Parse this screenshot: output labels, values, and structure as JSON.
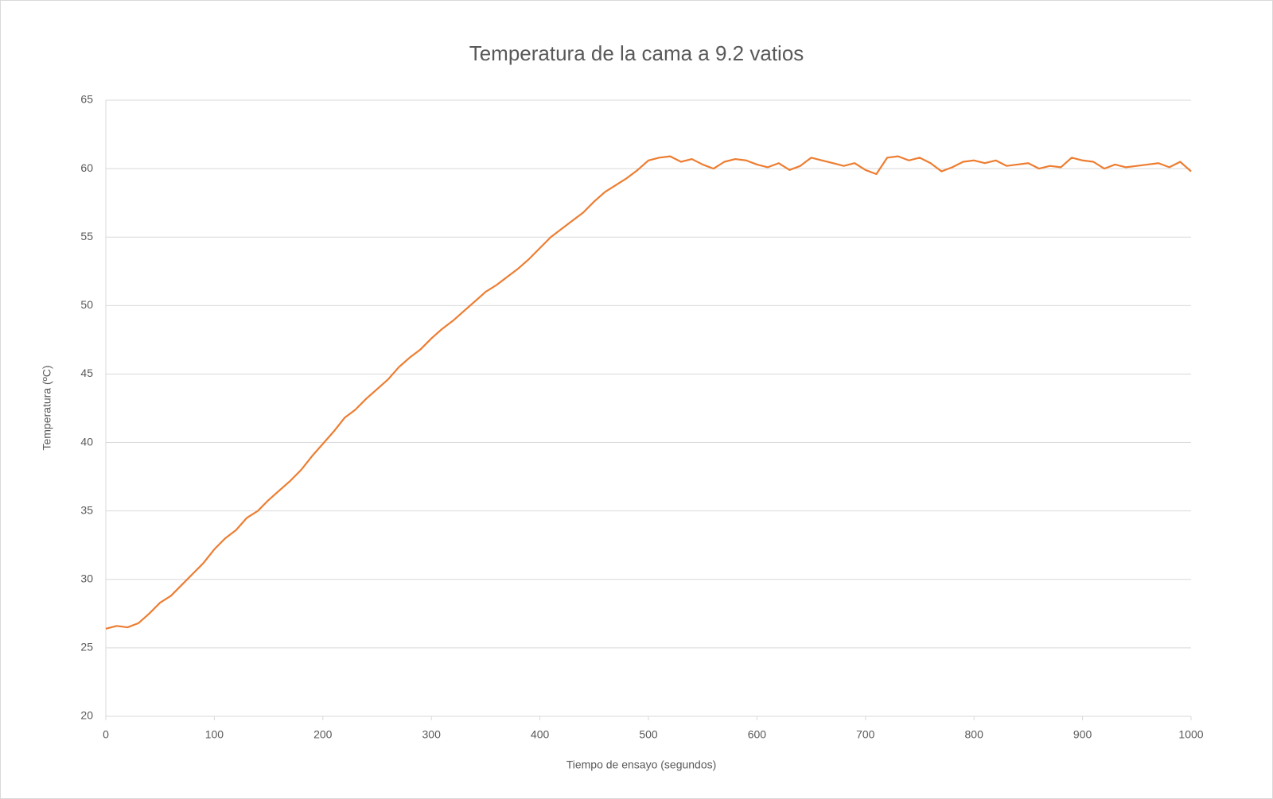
{
  "chart_data": {
    "type": "line",
    "title": "Temperatura de la cama a 9.2 vatios",
    "x_label": "Tiempo de ensayo (segundos)",
    "y_label": "Temperatura (ºC)",
    "x": [
      0,
      10,
      20,
      30,
      40,
      50,
      60,
      70,
      80,
      90,
      100,
      110,
      120,
      130,
      140,
      150,
      160,
      170,
      180,
      190,
      200,
      210,
      220,
      230,
      240,
      250,
      260,
      270,
      280,
      290,
      300,
      310,
      320,
      330,
      340,
      350,
      360,
      370,
      380,
      390,
      400,
      410,
      420,
      430,
      440,
      450,
      460,
      470,
      480,
      490,
      500,
      510,
      520,
      530,
      540,
      550,
      560,
      570,
      580,
      590,
      600,
      610,
      620,
      630,
      640,
      650,
      660,
      670,
      680,
      690,
      700,
      710,
      720,
      730,
      740,
      750,
      760,
      770,
      780,
      790,
      800,
      810,
      820,
      830,
      840,
      850,
      860,
      870,
      880,
      890,
      900,
      910,
      920,
      930,
      940,
      950,
      960,
      970,
      980,
      990,
      1000
    ],
    "series": [
      {
        "name": "Temperatura",
        "color": "#ed7d31",
        "values": [
          26.4,
          26.6,
          26.5,
          26.8,
          27.5,
          28.3,
          28.8,
          29.6,
          30.4,
          31.2,
          32.2,
          33.0,
          33.6,
          34.5,
          35.0,
          35.8,
          36.5,
          37.2,
          38.0,
          39.0,
          39.9,
          40.8,
          41.8,
          42.4,
          43.2,
          43.9,
          44.6,
          45.5,
          46.2,
          46.8,
          47.6,
          48.3,
          48.9,
          49.6,
          50.3,
          51.0,
          51.5,
          52.1,
          52.7,
          53.4,
          54.2,
          55.0,
          55.6,
          56.2,
          56.8,
          57.6,
          58.3,
          58.8,
          59.3,
          59.9,
          60.6,
          60.8,
          60.9,
          60.5,
          60.7,
          60.3,
          60.0,
          60.5,
          60.7,
          60.6,
          60.3,
          60.1,
          60.4,
          59.9,
          60.2,
          60.8,
          60.6,
          60.4,
          60.2,
          60.4,
          59.9,
          59.6,
          60.8,
          60.9,
          60.6,
          60.8,
          60.4,
          59.8,
          60.1,
          60.5,
          60.6,
          60.4,
          60.6,
          60.2,
          60.3,
          60.4,
          60.0,
          60.2,
          60.1,
          60.8,
          60.6,
          60.5,
          60.0,
          60.3,
          60.1,
          60.2,
          60.3,
          60.4,
          60.1,
          60.5,
          59.8
        ]
      }
    ],
    "xlim": [
      0,
      1000
    ],
    "xticks": [
      0,
      100,
      200,
      300,
      400,
      500,
      600,
      700,
      800,
      900,
      1000
    ],
    "ylim": [
      20,
      65
    ],
    "yticks": [
      20,
      25,
      30,
      35,
      40,
      45,
      50,
      55,
      60,
      65
    ],
    "grid": true
  }
}
